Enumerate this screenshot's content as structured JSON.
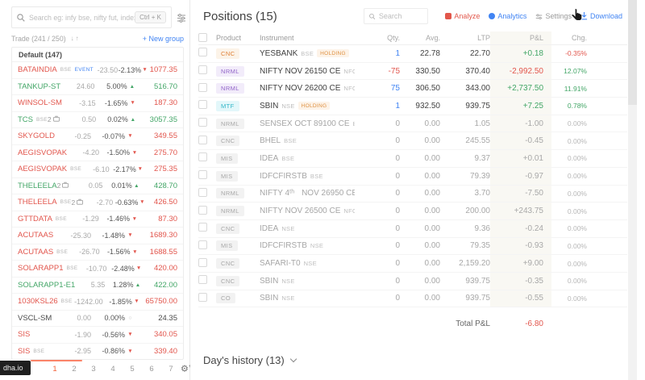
{
  "colors": {
    "red": "#e2564d",
    "green": "#43a667",
    "blue": "#4184f3",
    "orange_active": "#f4623a",
    "cnc_badge": "#df8138",
    "nrml_badge": "#9265c9",
    "mtf_badge": "#33b6c8"
  },
  "sidebar": {
    "search": {
      "placeholder": "Search eg: infy bse, nifty fut, index fund, etc",
      "shortcut": "Ctrl + K"
    },
    "group_bar": {
      "label": "Trade (241 / 250)",
      "new_group": "+ New group"
    },
    "group_header": "Default (147)",
    "rows": [
      {
        "name": "BATAINDIA",
        "trend": "down",
        "tags": [
          "BSE",
          "EVENT"
        ],
        "chg": "-23.50",
        "pct": "-2.13%",
        "ltp": "1077.35"
      },
      {
        "name": "TANKUP-ST",
        "trend": "up",
        "tags": [],
        "chg": "24.60",
        "pct": "5.00%",
        "ltp": "516.70"
      },
      {
        "name": "WINSOL-SM",
        "trend": "down",
        "tags": [],
        "chg": "-3.15",
        "pct": "-1.65%",
        "ltp": "187.30"
      },
      {
        "name": "TCS",
        "trend": "up",
        "tags": [
          "BSE"
        ],
        "qty": "2",
        "chg": "0.50",
        "pct": "0.02%",
        "ltp": "3057.35"
      },
      {
        "name": "SKYGOLD",
        "trend": "down",
        "tags": [],
        "chg": "-0.25",
        "pct": "-0.07%",
        "ltp": "349.55"
      },
      {
        "name": "AEGISVOPAK",
        "trend": "down",
        "tags": [],
        "chg": "-4.20",
        "pct": "-1.50%",
        "ltp": "275.70"
      },
      {
        "name": "AEGISVOPAK",
        "trend": "down",
        "tags": [
          "BSE"
        ],
        "chg": "-6.10",
        "pct": "-2.17%",
        "ltp": "275.35"
      },
      {
        "name": "THELEELA",
        "trend": "up",
        "tags": [],
        "qty": "2",
        "chg": "0.05",
        "pct": "0.01%",
        "ltp": "428.70"
      },
      {
        "name": "THELEELA",
        "trend": "down",
        "tags": [
          "BSE"
        ],
        "qty": "2",
        "chg": "-2.70",
        "pct": "-0.63%",
        "ltp": "426.50"
      },
      {
        "name": "GTTDATA",
        "trend": "down",
        "tags": [
          "BSE"
        ],
        "chg": "-1.29",
        "pct": "-1.46%",
        "ltp": "87.30"
      },
      {
        "name": "ACUTAAS",
        "trend": "down",
        "tags": [],
        "chg": "-25.30",
        "pct": "-1.48%",
        "ltp": "1689.30"
      },
      {
        "name": "ACUTAAS",
        "trend": "down",
        "tags": [
          "BSE"
        ],
        "chg": "-26.70",
        "pct": "-1.56%",
        "ltp": "1688.55"
      },
      {
        "name": "SOLARAPP1",
        "trend": "down",
        "tags": [
          "BSE"
        ],
        "chg": "-10.70",
        "pct": "-2.48%",
        "ltp": "420.00"
      },
      {
        "name": "SOLARAPP1-E1",
        "trend": "up",
        "tags": [],
        "chg": "5.35",
        "pct": "1.28%",
        "ltp": "422.00"
      },
      {
        "name": "1030KSL26",
        "trend": "down",
        "tags": [
          "BSE"
        ],
        "chg": "-1242.00",
        "pct": "-1.85%",
        "ltp": "65750.00"
      },
      {
        "name": "VSCL-SM",
        "trend": "flat",
        "tags": [],
        "chg": "0.00",
        "pct": "0.00%",
        "ltp": "24.35"
      },
      {
        "name": "SIS",
        "trend": "down",
        "tags": [],
        "chg": "-1.90",
        "pct": "-0.56%",
        "ltp": "340.05"
      },
      {
        "name": "SIS",
        "trend": "down",
        "tags": [
          "BSE"
        ],
        "chg": "-2.95",
        "pct": "-0.86%",
        "ltp": "339.40"
      }
    ],
    "pages": [
      "1",
      "2",
      "3",
      "4",
      "5",
      "6",
      "7"
    ],
    "active_page": "1",
    "url_tooltip": "dha.io"
  },
  "positions": {
    "title": "Positions (15)",
    "search_placeholder": "Search",
    "actions": [
      {
        "label": "Analyze",
        "color": "red"
      },
      {
        "label": "Analytics",
        "color": "blue"
      },
      {
        "label": "Settings",
        "color": "grey"
      },
      {
        "label": "Download",
        "color": "blue"
      }
    ],
    "columns": {
      "product": "Product",
      "instrument": "Instrument",
      "qty": "Qty.",
      "avg": "Avg.",
      "ltp": "LTP",
      "pnl": "P&L",
      "chg": "Chg."
    },
    "holding_label": "HOLDING",
    "rows": [
      {
        "product": "CNC",
        "ptype": "cnc",
        "open": true,
        "name": "YESBANK",
        "exch": "BSE",
        "holding": true,
        "qty": "1",
        "qtyc": "pos",
        "avg": "22.78",
        "ltp": "22.70",
        "pnl": "+0.18",
        "pnlc": "green",
        "chg": "-0.35%",
        "chgc": "red"
      },
      {
        "product": "NRML",
        "ptype": "nrml",
        "open": true,
        "name": "NIFTY NOV 26150 CE",
        "exch": "NFO",
        "qty": "-75",
        "qtyc": "neg",
        "avg": "330.50",
        "ltp": "370.40",
        "pnl": "-2,992.50",
        "pnlc": "red",
        "chg": "12.07%",
        "chgc": "green"
      },
      {
        "product": "NRML",
        "ptype": "nrml",
        "open": true,
        "name": "NIFTY NOV 26200 CE",
        "exch": "NFO",
        "qty": "75",
        "qtyc": "pos",
        "avg": "306.50",
        "ltp": "343.00",
        "pnl": "+2,737.50",
        "pnlc": "green",
        "chg": "11.91%",
        "chgc": "green"
      },
      {
        "product": "MTF",
        "ptype": "mtf",
        "open": true,
        "name": "SBIN",
        "exch": "NSE",
        "holding": true,
        "qty": "1",
        "qtyc": "pos",
        "avg": "932.50",
        "ltp": "939.75",
        "pnl": "+7.25",
        "pnlc": "green",
        "chg": "0.78%",
        "chgc": "green"
      },
      {
        "product": "NRML",
        "open": false,
        "name": "SENSEX OCT 89100 CE",
        "exch": "BFO",
        "qty": "0",
        "avg": "0.00",
        "ltp": "1.05",
        "pnl": "-1.00",
        "chg": "0.00%"
      },
      {
        "product": "CNC",
        "open": false,
        "name": "BHEL",
        "exch": "BSE",
        "qty": "0",
        "avg": "0.00",
        "ltp": "245.55",
        "pnl": "-0.45",
        "chg": "0.00%"
      },
      {
        "product": "MIS",
        "open": false,
        "name": "IDEA",
        "exch": "BSE",
        "qty": "0",
        "avg": "0.00",
        "ltp": "9.37",
        "pnl": "+0.01",
        "chg": "0.00%"
      },
      {
        "product": "MIS",
        "open": false,
        "name": "IDFCFIRSTB",
        "exch": "BSE",
        "qty": "0",
        "avg": "0.00",
        "ltp": "79.39",
        "pnl": "-0.97",
        "chg": "0.00%"
      },
      {
        "product": "NRML",
        "open": false,
        "name": "NIFTY 4ᵗʰ",
        "name2": "NOV 26950 CE",
        "weekly": true,
        "exch": "NFO",
        "qty": "0",
        "avg": "0.00",
        "ltp": "3.70",
        "pnl": "-7.50",
        "chg": "0.00%"
      },
      {
        "product": "NRML",
        "open": false,
        "name": "NIFTY NOV 26500 CE",
        "exch": "NFO",
        "qty": "0",
        "avg": "0.00",
        "ltp": "200.00",
        "pnl": "+243.75",
        "chg": "0.00%"
      },
      {
        "product": "CNC",
        "open": false,
        "name": "IDEA",
        "exch": "NSE",
        "qty": "0",
        "avg": "0.00",
        "ltp": "9.36",
        "pnl": "-0.24",
        "chg": "0.00%"
      },
      {
        "product": "MIS",
        "open": false,
        "name": "IDFCFIRSTB",
        "exch": "NSE",
        "qty": "0",
        "avg": "0.00",
        "ltp": "79.35",
        "pnl": "-0.93",
        "chg": "0.00%"
      },
      {
        "product": "CNC",
        "open": false,
        "name": "SAFARI-T0",
        "exch": "NSE",
        "qty": "0",
        "avg": "0.00",
        "ltp": "2,159.20",
        "pnl": "+9.00",
        "chg": "0.00%"
      },
      {
        "product": "CNC",
        "open": false,
        "name": "SBIN",
        "exch": "NSE",
        "qty": "0",
        "avg": "0.00",
        "ltp": "939.75",
        "pnl": "-0.35",
        "chg": "0.00%"
      },
      {
        "product": "CO",
        "open": false,
        "name": "SBIN",
        "exch": "NSE",
        "qty": "0",
        "avg": "0.00",
        "ltp": "939.75",
        "pnl": "-0.55",
        "chg": "0.00%"
      }
    ],
    "total_label": "Total P&L",
    "total_value": "-6.80",
    "days_history": "Day's history (13)"
  }
}
